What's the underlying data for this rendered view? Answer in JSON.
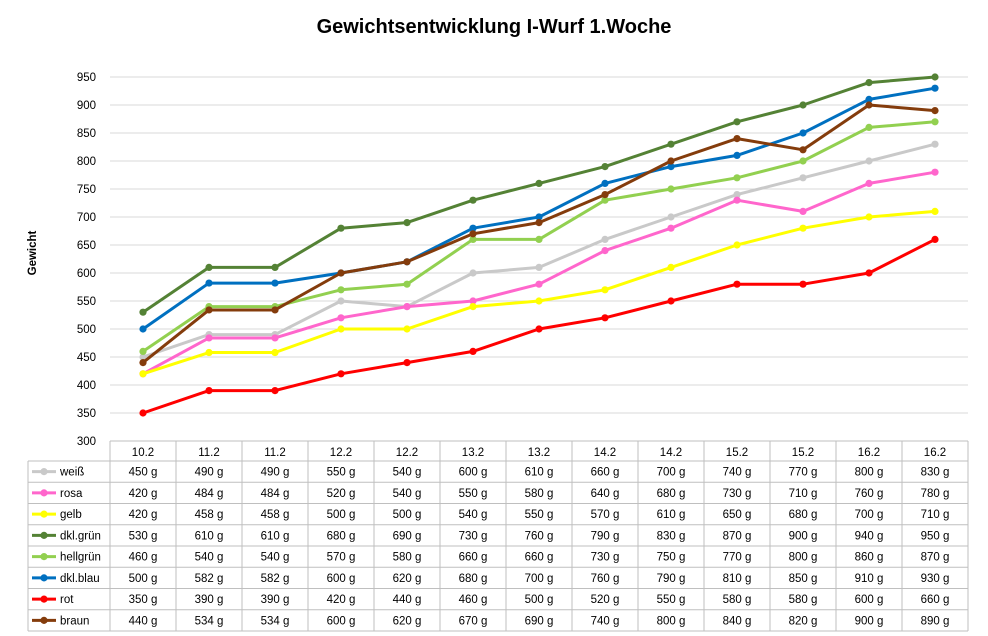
{
  "chart_data": {
    "type": "line",
    "title": "Gewichtsentwicklung I-Wurf 1.Woche",
    "ylabel": "Gewicht",
    "xlabel": "",
    "ylim": [
      300,
      950
    ],
    "yticks": [
      300,
      350,
      400,
      450,
      500,
      550,
      600,
      650,
      700,
      750,
      800,
      850,
      900,
      950
    ],
    "grid": true,
    "legend": "table below chart",
    "categories": [
      "10.2",
      "11.2",
      "11.2",
      "12.2",
      "12.2",
      "13.2",
      "13.2",
      "14.2",
      "14.2",
      "15.2",
      "15.2",
      "16.2",
      "16.2"
    ],
    "value_suffix": "g",
    "series": [
      {
        "name": "weiß",
        "color": "#c9c9c9",
        "values": [
          450,
          490,
          490,
          550,
          540,
          600,
          610,
          660,
          700,
          740,
          770,
          800,
          830
        ]
      },
      {
        "name": "rosa",
        "color": "#ff66cc",
        "values": [
          420,
          484,
          484,
          520,
          540,
          550,
          580,
          640,
          680,
          730,
          710,
          760,
          780
        ]
      },
      {
        "name": "gelb",
        "color": "#ffff00",
        "values": [
          420,
          458,
          458,
          500,
          500,
          540,
          550,
          570,
          610,
          650,
          680,
          700,
          710
        ]
      },
      {
        "name": "dkl.grün",
        "color": "#548235",
        "values": [
          530,
          610,
          610,
          680,
          690,
          730,
          760,
          790,
          830,
          870,
          900,
          940,
          950
        ]
      },
      {
        "name": "hellgrün",
        "color": "#92d050",
        "values": [
          460,
          540,
          540,
          570,
          580,
          660,
          660,
          730,
          750,
          770,
          800,
          860,
          870
        ]
      },
      {
        "name": "dkl.blau",
        "color": "#0070c0",
        "values": [
          500,
          582,
          582,
          600,
          620,
          680,
          700,
          760,
          790,
          810,
          850,
          910,
          930
        ]
      },
      {
        "name": "rot",
        "color": "#ff0000",
        "values": [
          350,
          390,
          390,
          420,
          440,
          460,
          500,
          520,
          550,
          580,
          580,
          600,
          660
        ]
      },
      {
        "name": "braun",
        "color": "#843c0c",
        "values": [
          440,
          534,
          534,
          600,
          620,
          670,
          690,
          740,
          800,
          840,
          820,
          900,
          890
        ]
      }
    ]
  }
}
